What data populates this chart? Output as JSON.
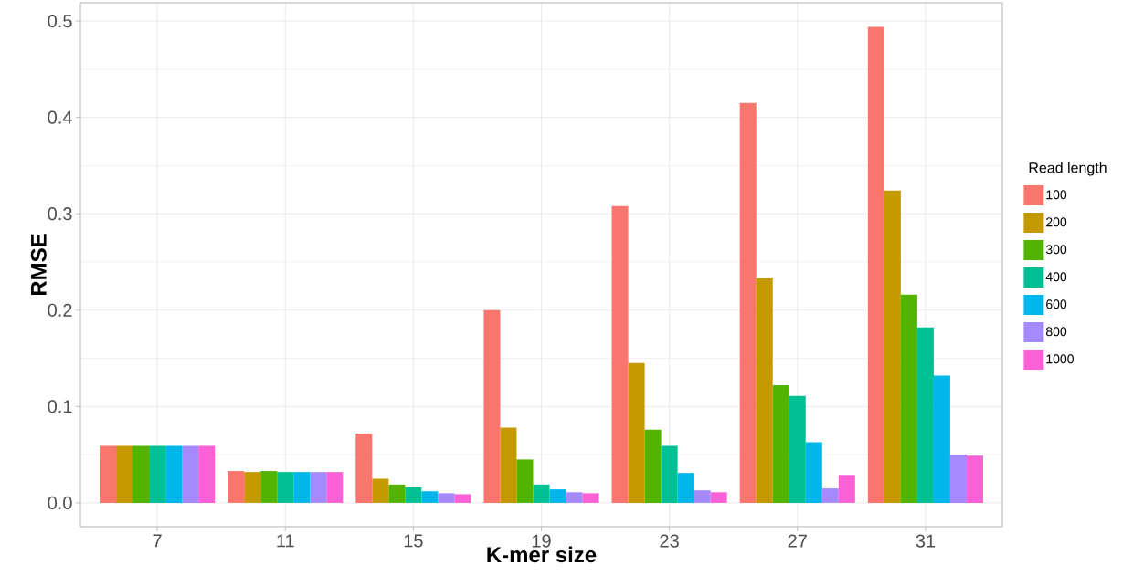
{
  "chart_data": {
    "type": "bar",
    "xlabel": "K-mer size",
    "ylabel": "RMSE",
    "legend_title": "Read length",
    "categories": [
      "7",
      "11",
      "15",
      "19",
      "23",
      "27",
      "31"
    ],
    "ylim": [
      -0.0247,
      0.519
    ],
    "yticks": [
      {
        "value": 0,
        "label": "0.0"
      },
      0.1,
      0.2,
      0.3,
      0.4,
      0.5
    ],
    "grid": true,
    "legend": "right",
    "series": [
      {
        "name": "100",
        "color": "#f8766d",
        "values": [
          0.059,
          0.033,
          0.072,
          0.2,
          0.308,
          0.415,
          0.494
        ]
      },
      {
        "name": "200",
        "color": "#c49a00",
        "values": [
          0.059,
          0.032,
          0.025,
          0.078,
          0.145,
          0.233,
          0.324
        ]
      },
      {
        "name": "300",
        "color": "#53b400",
        "values": [
          0.059,
          0.033,
          0.019,
          0.045,
          0.076,
          0.122,
          0.216
        ]
      },
      {
        "name": "400",
        "color": "#00c094",
        "values": [
          0.059,
          0.032,
          0.016,
          0.019,
          0.059,
          0.111,
          0.182
        ]
      },
      {
        "name": "600",
        "color": "#00b6eb",
        "values": [
          0.059,
          0.032,
          0.012,
          0.014,
          0.031,
          0.063,
          0.132
        ]
      },
      {
        "name": "800",
        "color": "#a58aff",
        "values": [
          0.059,
          0.032,
          0.01,
          0.011,
          0.013,
          0.015,
          0.05
        ]
      },
      {
        "name": "1000",
        "color": "#fb61d7",
        "values": [
          0.059,
          0.032,
          0.009,
          0.01,
          0.011,
          0.029,
          0.049
        ]
      }
    ]
  }
}
